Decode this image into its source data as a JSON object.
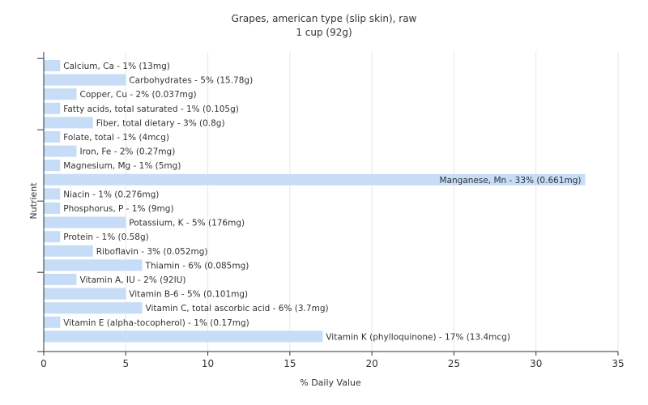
{
  "chart_data": {
    "type": "bar",
    "orientation": "horizontal",
    "title": "Grapes, american type (slip skin), raw",
    "subtitle": "1 cup (92g)",
    "xlabel": "% Daily Value",
    "ylabel": "Nutrient",
    "xlim": [
      0,
      35
    ],
    "xticks": [
      0,
      5,
      10,
      15,
      20,
      25,
      30,
      35
    ],
    "grid": true,
    "bar_color": "#c6dcf7",
    "categories": [
      "Calcium, Ca",
      "Carbohydrates",
      "Copper, Cu",
      "Fatty acids, total saturated",
      "Fiber, total dietary",
      "Folate, total",
      "Iron, Fe",
      "Magnesium, Mg",
      "Manganese, Mn",
      "Niacin",
      "Phosphorus, P",
      "Potassium, K",
      "Protein",
      "Riboflavin",
      "Thiamin",
      "Vitamin A, IU",
      "Vitamin B-6",
      "Vitamin C, total ascorbic acid",
      "Vitamin E (alpha-tocopherol)",
      "Vitamin K (phylloquinone)"
    ],
    "values": [
      1,
      5,
      2,
      1,
      3,
      1,
      2,
      1,
      33,
      1,
      1,
      5,
      1,
      3,
      6,
      2,
      5,
      6,
      1,
      17
    ],
    "labels": [
      "Calcium, Ca - 1% (13mg)",
      "Carbohydrates - 5% (15.78g)",
      "Copper, Cu - 2% (0.037mg)",
      "Fatty acids, total saturated - 1% (0.105g)",
      "Fiber, total dietary - 3% (0.8g)",
      "Folate, total - 1% (4mcg)",
      "Iron, Fe - 2% (0.27mg)",
      "Magnesium, Mg - 1% (5mg)",
      "Manganese, Mn - 33% (0.661mg)",
      "Niacin - 1% (0.276mg)",
      "Phosphorus, P - 1% (9mg)",
      "Potassium, K - 5% (176mg)",
      "Protein - 1% (0.58g)",
      "Riboflavin - 3% (0.052mg)",
      "Thiamin - 6% (0.085mg)",
      "Vitamin A, IU - 2% (92IU)",
      "Vitamin B-6 - 5% (0.101mg)",
      "Vitamin C, total ascorbic acid - 6% (3.7mg)",
      "Vitamin E (alpha-tocopherol) - 1% (0.17mg)",
      "Vitamin K (phylloquinone) - 17% (13.4mcg)"
    ]
  }
}
